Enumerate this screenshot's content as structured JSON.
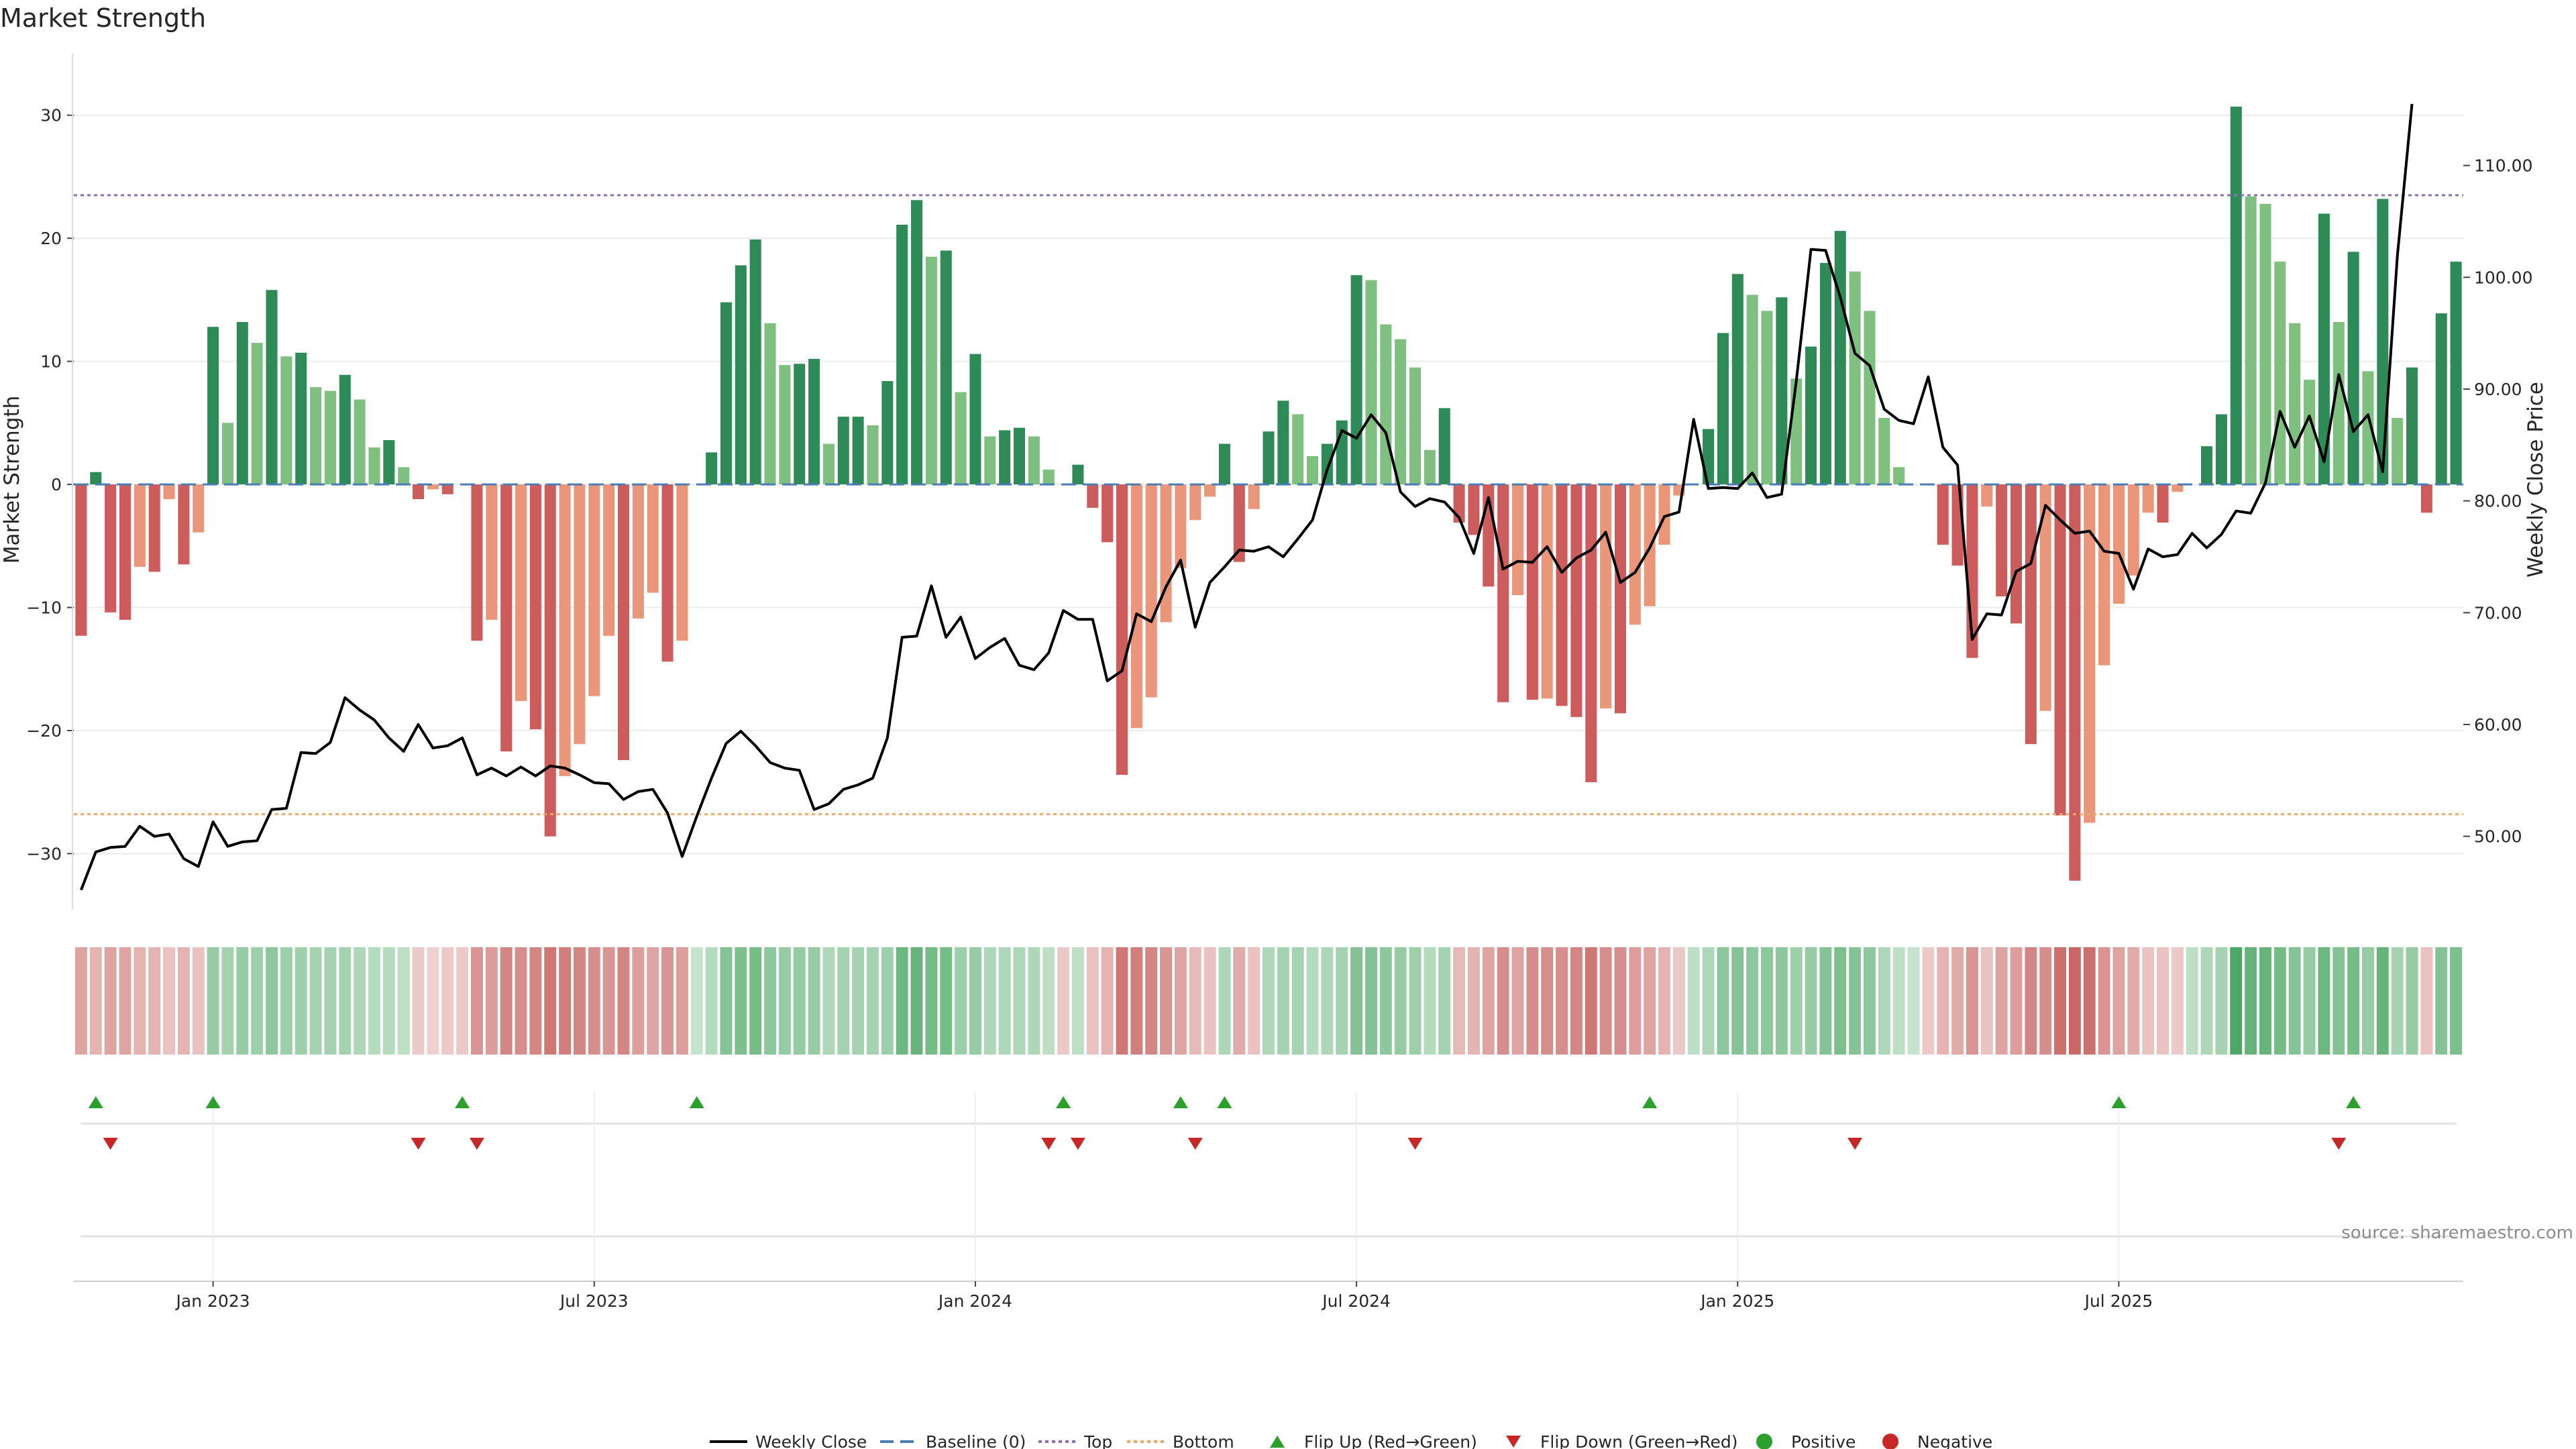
{
  "chart_data": {
    "type": "bar",
    "title": "Market Strength",
    "ylabel": "Market Strength",
    "y2label": "Weekly Close Price",
    "source": "source: sharemaestro.com",
    "ylim": [
      -34.5,
      35
    ],
    "y2lim": [
      43.5,
      120
    ],
    "y_ticks": [
      30,
      20,
      10,
      0,
      -10,
      -20,
      -30
    ],
    "y_tick_labels": [
      "30",
      "20",
      "10",
      "0",
      "−10",
      "−20",
      "−30"
    ],
    "y2_ticks": [
      110,
      100,
      90,
      80,
      70,
      60,
      50
    ],
    "y2_tick_labels": [
      "110.00",
      "100.00",
      "90.00",
      "80.00",
      "70.00",
      "60.00",
      "50.00"
    ],
    "x_tick_labels": [
      "Jan 2023",
      "Jul 2023",
      "Jan 2024",
      "Jul 2024",
      "Jan 2025",
      "Jul 2025"
    ],
    "x_tick_weeks": [
      9,
      35,
      61,
      87,
      113,
      139
    ],
    "top_level": 23.5,
    "bottom_level": -26.8,
    "colors": {
      "strong_green": "#2e8b57",
      "light_green": "#7fbf7f",
      "strong_red": "#cd5c5c",
      "light_red": "#e9967a",
      "price_line": "#000000",
      "baseline": "#4a7db5",
      "top_line": "#8a6fb5",
      "bottom_line": "#e9a96a",
      "flip_up": "#2ca02c",
      "flip_down": "#c62828",
      "heat_pos": "#43a35c",
      "heat_neg": "#c0504d"
    },
    "strength": [
      -12.3,
      1.0,
      -10.4,
      -11.0,
      -6.7,
      -7.1,
      -1.2,
      -6.5,
      -3.9,
      12.8,
      5.0,
      13.2,
      11.5,
      15.8,
      10.4,
      10.7,
      7.9,
      7.6,
      8.9,
      6.9,
      3.0,
      3.6,
      1.4,
      -1.2,
      -0.4,
      -0.8,
      0.0,
      -12.7,
      -11.0,
      -21.7,
      -17.6,
      -19.9,
      -28.6,
      -23.7,
      -21.1,
      -17.2,
      -12.3,
      -22.4,
      -10.9,
      -8.8,
      -14.4,
      -12.7,
      0.0,
      2.6,
      14.8,
      17.8,
      19.9,
      13.1,
      9.7,
      9.8,
      10.2,
      3.3,
      5.5,
      5.5,
      4.8,
      8.4,
      21.1,
      23.1,
      18.5,
      19.0,
      7.5,
      10.6,
      3.9,
      4.4,
      4.6,
      3.9,
      1.2,
      0.0,
      1.6,
      -1.9,
      -4.7,
      -23.6,
      -19.8,
      -17.3,
      -11.2,
      -6.8,
      -2.9,
      -1.0,
      3.3,
      -6.3,
      -2.0,
      4.3,
      6.8,
      5.7,
      2.3,
      3.3,
      5.2,
      17.0,
      16.6,
      13.0,
      11.8,
      9.5,
      2.8,
      6.2,
      -3.1,
      -4.1,
      -8.3,
      -17.7,
      -9.0,
      -17.5,
      -17.4,
      -18.0,
      -18.9,
      -24.2,
      -18.2,
      -18.6,
      -11.4,
      -9.9,
      -4.9,
      -0.9,
      0.0,
      4.5,
      12.3,
      17.1,
      15.4,
      14.1,
      15.2,
      8.6,
      11.2,
      18.0,
      20.6,
      17.3,
      14.1,
      5.4,
      1.4,
      0.0,
      0.0,
      -4.9,
      -6.6,
      -14.1,
      -1.8,
      -9.1,
      -11.3,
      -21.1,
      -18.4,
      -26.9,
      -32.2,
      -27.5,
      -14.7,
      -9.7,
      -7.4,
      -2.3,
      -3.1,
      -0.6,
      0.0,
      3.1,
      5.7,
      30.7,
      23.4,
      22.8,
      18.1,
      13.1,
      8.5,
      22.0,
      13.2,
      18.9,
      9.2,
      23.2,
      5.4,
      9.5,
      -2.3,
      13.9,
      18.1
    ],
    "price": [
      45.2,
      48.6,
      49.0,
      49.1,
      50.9,
      50.0,
      50.2,
      48.0,
      47.3,
      51.3,
      49.1,
      49.5,
      49.6,
      52.4,
      52.5,
      57.5,
      57.4,
      58.4,
      62.4,
      61.3,
      60.4,
      58.8,
      57.6,
      60.0,
      57.9,
      58.1,
      58.8,
      55.5,
      56.1,
      55.4,
      56.2,
      55.4,
      56.3,
      56.1,
      55.5,
      54.8,
      54.7,
      53.3,
      54.0,
      54.2,
      52.1,
      48.2,
      51.8,
      55.2,
      58.3,
      59.4,
      58.1,
      56.6,
      56.1,
      55.9,
      52.4,
      52.9,
      54.2,
      54.6,
      55.2,
      58.8,
      67.8,
      67.9,
      72.4,
      67.8,
      69.6,
      65.9,
      66.9,
      67.7,
      65.3,
      64.9,
      66.4,
      70.2,
      69.4,
      69.4,
      63.9,
      64.8,
      69.9,
      69.2,
      72.3,
      74.7,
      68.7,
      72.7,
      74.1,
      75.6,
      75.5,
      75.9,
      75.0,
      76.6,
      78.3,
      82.8,
      86.3,
      85.6,
      87.7,
      86.1,
      80.8,
      79.5,
      80.2,
      79.9,
      78.5,
      75.3,
      80.3,
      73.9,
      74.6,
      74.5,
      75.9,
      73.6,
      74.9,
      75.6,
      77.2,
      72.7,
      73.6,
      75.8,
      78.6,
      79.0,
      87.3,
      81.1,
      81.2,
      81.1,
      82.5,
      80.3,
      80.6,
      90.7,
      102.5,
      102.4,
      98.2,
      93.2,
      92.1,
      88.2,
      87.2,
      86.9,
      91.1,
      84.8,
      83.2,
      67.6,
      69.9,
      69.8,
      73.7,
      74.4,
      79.6,
      78.3,
      77.1,
      77.3,
      75.5,
      75.3,
      72.1,
      75.7,
      75.0,
      75.2,
      77.1,
      75.8,
      77.0,
      79.1,
      78.9,
      81.6,
      88.0,
      84.8,
      87.6,
      83.5,
      91.3,
      86.2,
      87.7,
      82.6,
      101.9,
      115.5
    ],
    "heat": [
      -0.4,
      -0.3,
      -0.4,
      -0.4,
      -0.3,
      -0.3,
      -0.2,
      -0.3,
      -0.2,
      0.45,
      0.35,
      0.45,
      0.4,
      0.5,
      0.4,
      0.4,
      0.35,
      0.35,
      0.35,
      0.3,
      0.25,
      0.25,
      0.2,
      -0.15,
      -0.1,
      -0.15,
      -0.15,
      -0.5,
      -0.45,
      -0.6,
      -0.55,
      -0.6,
      -0.7,
      -0.65,
      -0.6,
      -0.55,
      -0.5,
      -0.6,
      -0.45,
      -0.4,
      -0.5,
      -0.45,
      0.15,
      0.25,
      0.55,
      0.6,
      0.65,
      0.5,
      0.45,
      0.45,
      0.45,
      0.3,
      0.35,
      0.35,
      0.35,
      0.4,
      0.7,
      0.75,
      0.65,
      0.65,
      0.4,
      0.45,
      0.3,
      0.3,
      0.3,
      0.3,
      0.2,
      -0.15,
      0.2,
      -0.2,
      -0.3,
      -0.7,
      -0.65,
      -0.6,
      -0.5,
      -0.4,
      -0.25,
      -0.2,
      0.3,
      -0.35,
      -0.2,
      0.3,
      0.35,
      0.35,
      0.25,
      0.3,
      0.35,
      0.55,
      0.55,
      0.5,
      0.45,
      0.4,
      0.25,
      0.35,
      -0.25,
      -0.3,
      -0.4,
      -0.55,
      -0.4,
      -0.55,
      -0.55,
      -0.55,
      -0.6,
      -0.7,
      -0.55,
      -0.55,
      -0.45,
      -0.4,
      -0.3,
      -0.15,
      0.2,
      0.3,
      0.5,
      0.55,
      0.5,
      0.5,
      0.5,
      0.4,
      0.45,
      0.55,
      0.6,
      0.55,
      0.5,
      0.3,
      0.2,
      0.15,
      -0.15,
      -0.3,
      -0.35,
      -0.5,
      -0.2,
      -0.4,
      -0.45,
      -0.6,
      -0.55,
      -0.75,
      -0.8,
      -0.75,
      -0.5,
      -0.4,
      -0.35,
      -0.2,
      -0.2,
      -0.15,
      0.2,
      0.3,
      0.35,
      0.9,
      0.75,
      0.75,
      0.65,
      0.55,
      0.45,
      0.7,
      0.55,
      0.65,
      0.45,
      0.75,
      0.35,
      0.45,
      -0.2,
      0.55,
      0.6
    ],
    "flip_up_weeks": [
      1,
      9,
      26,
      42,
      67,
      75,
      78,
      107,
      139,
      155
    ],
    "flip_down_weeks": [
      2,
      23,
      27,
      66,
      68,
      76,
      91,
      121,
      154
    ],
    "legend": [
      {
        "label": "Weekly Close",
        "kind": "line",
        "color": "#000000"
      },
      {
        "label": "Baseline (0)",
        "kind": "dash",
        "color": "#4a7db5"
      },
      {
        "label": "Top",
        "kind": "dot",
        "color": "#8a6fb5"
      },
      {
        "label": "Bottom",
        "kind": "dot",
        "color": "#e9a96a"
      },
      {
        "label": "Flip Up (Red→Green)",
        "kind": "tri-up",
        "color": "#2ca02c"
      },
      {
        "label": "Flip Down (Green→Red)",
        "kind": "tri-down",
        "color": "#c62828"
      },
      {
        "label": "Positive",
        "kind": "circle",
        "color": "#2ca02c"
      },
      {
        "label": "Negative",
        "kind": "circle",
        "color": "#c62828"
      }
    ]
  }
}
